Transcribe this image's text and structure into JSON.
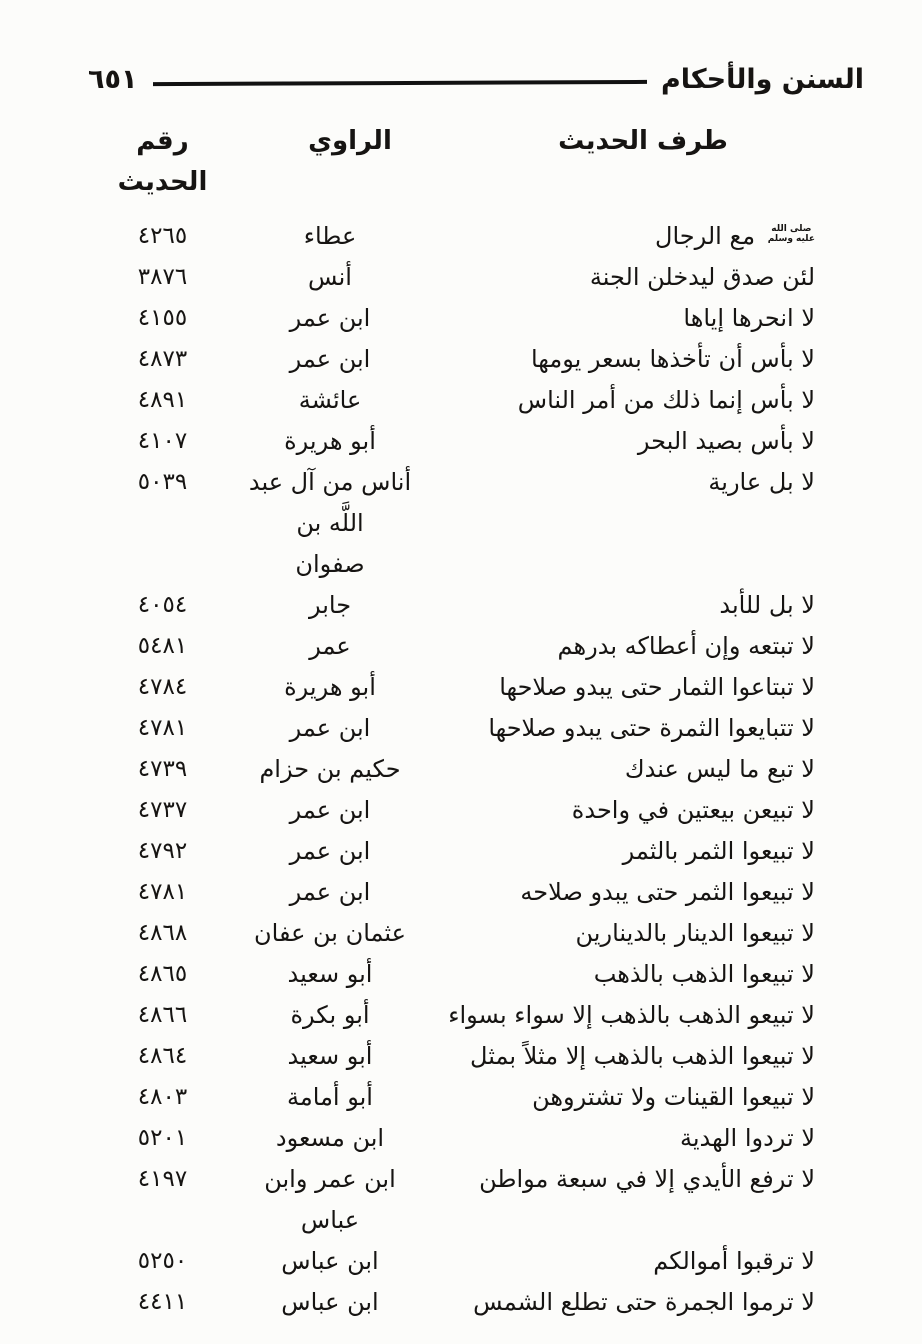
{
  "page": {
    "title": "السنن والأحكام",
    "page_number": "٦٥١"
  },
  "colors": {
    "paper": "#fcfcfa",
    "ink": "#161412"
  },
  "honorific": {
    "top": "صلى الله",
    "bottom": "عليه وسلم"
  },
  "table": {
    "headers": {
      "hadith": "طرف الحديث",
      "narrator": "الراوي",
      "number": "رقم الحديث"
    },
    "rows": [
      {
        "honorific": true,
        "hadith": "مع الرجال",
        "narrator": "عطاء",
        "number": "٤٢٦٥"
      },
      {
        "hadith": "لئن صدق ليدخلن الجنة",
        "narrator": "أنس",
        "number": "٣٨٧٦"
      },
      {
        "hadith": "لا انحرها إياها",
        "narrator": "ابن عمر",
        "number": "٤١٥٥"
      },
      {
        "hadith": "لا بأس أن تأخذها بسعر يومها",
        "narrator": "ابن عمر",
        "number": "٤٨٧٣"
      },
      {
        "hadith": "لا بأس إنما ذلك من أمر الناس",
        "narrator": "عائشة",
        "number": "٤٨٩١"
      },
      {
        "hadith": "لا بأس بصيد البحر",
        "narrator": "أبو هريرة",
        "number": "٤١٠٧"
      },
      {
        "hadith": "لا بل عارية",
        "narrator": "أناس من آل عبد اللَّه بن",
        "narrator2": "صفوان",
        "number": "٥٠٣٩"
      },
      {
        "hadith": "لا بل للأبد",
        "narrator": "جابر",
        "number": "٤٠٥٤"
      },
      {
        "hadith": "لا تبتعه وإن أعطاكه بدرهم",
        "narrator": "عمر",
        "number": "٥٤٨١"
      },
      {
        "hadith": "لا تبتاعوا الثمار حتى يبدو صلاحها",
        "narrator": "أبو هريرة",
        "number": "٤٧٨٤"
      },
      {
        "hadith": "لا تتبايعوا الثمرة حتى يبدو صلاحها",
        "narrator": "ابن عمر",
        "number": "٤٧٨١"
      },
      {
        "hadith": "لا تبع ما ليس عندك",
        "narrator": "حكيم بن حزام",
        "number": "٤٧٣٩"
      },
      {
        "hadith": "لا تبيعن بيعتين في واحدة",
        "narrator": "ابن عمر",
        "number": "٤٧٣٧"
      },
      {
        "hadith": "لا تبيعوا الثمر بالثمر",
        "narrator": "ابن عمر",
        "number": "٤٧٩٢"
      },
      {
        "hadith": "لا تبيعوا الثمر حتى يبدو صلاحه",
        "narrator": "ابن عمر",
        "number": "٤٧٨١"
      },
      {
        "hadith": "لا تبيعوا الدينار بالدينارين",
        "narrator": "عثمان بن عفان",
        "number": "٤٨٦٨"
      },
      {
        "hadith": "لا تبيعوا الذهب بالذهب",
        "narrator": "أبو سعيد",
        "number": "٤٨٦٥"
      },
      {
        "hadith": "لا تبيعو الذهب بالذهب إلا سواء بسواء",
        "narrator": "أبو بكرة",
        "number": "٤٨٦٦"
      },
      {
        "hadith": "لا تبيعوا الذهب بالذهب إلا مثلاً بمثل",
        "narrator": "أبو سعيد",
        "number": "٤٨٦٤"
      },
      {
        "hadith": "لا تبيعوا القينات ولا تشتروهن",
        "narrator": "أبو أمامة",
        "number": "٤٨٠٣"
      },
      {
        "hadith": "لا تردوا الهدية",
        "narrator": "ابن مسعود",
        "number": "٥٢٠١"
      },
      {
        "hadith": "لا ترفع الأيدي إلا في سبعة مواطن",
        "narrator": "ابن عمر وابن عباس",
        "number": "٤١٩٧"
      },
      {
        "hadith": "لا ترقبوا أموالكم",
        "narrator": "ابن عباس",
        "number": "٥٢٥٠"
      },
      {
        "hadith": "لا ترموا الجمرة حتى تطلع الشمس",
        "narrator": "ابن عباس",
        "number": "٤٤١١"
      }
    ]
  }
}
